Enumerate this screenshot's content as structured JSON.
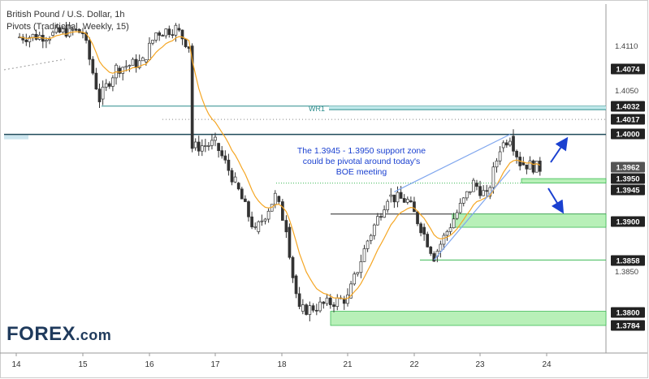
{
  "header": {
    "title": "British Pound / U.S. Dollar, 1h",
    "indicator": "Pivots (Traditional, Weekly, 15)"
  },
  "logo": {
    "brand": "FOREX",
    "suffix": ".com"
  },
  "colors": {
    "up": "#3a3a3a",
    "down": "#3a3a3a",
    "ema": "#f5a623",
    "zone_fill": "#b8f0b8",
    "zone_stroke": "#3cba54",
    "teal": "#2a8c8c",
    "annotation": "#1a40d0",
    "badge_dark": "#222222",
    "badge_grey": "#555555",
    "wedge": "#7fa6ee"
  },
  "chart_data": {
    "type": "candlestick",
    "title": "British Pound / U.S. Dollar, 1h",
    "x_tick_labels": [
      "14",
      "15",
      "16",
      "17",
      "18",
      "21",
      "22",
      "23",
      "24"
    ],
    "y_tick_labels": [
      "1.4110",
      "1.4050",
      "1.3850"
    ],
    "price_labels": [
      {
        "label": "1.4074",
        "style": "dark"
      },
      {
        "label": "1.4032",
        "style": "dark"
      },
      {
        "label": "1.4017",
        "style": "dark"
      },
      {
        "label": "1.4000",
        "style": "dark"
      },
      {
        "label": "1.3962",
        "style": "grey"
      },
      {
        "label": "1.3950",
        "style": "dark"
      },
      {
        "label": "1.3945",
        "style": "dark"
      },
      {
        "label": "1.3900",
        "style": "dark"
      },
      {
        "label": "1.3858",
        "style": "dark"
      },
      {
        "label": "1.3800",
        "style": "dark"
      },
      {
        "label": "1.3784",
        "style": "dark"
      }
    ],
    "annotation": "The 1.3945 - 1.3950 support zone could be pivotal around today's BOE meeting",
    "annotation_lines": [
      "The 1.3945 - 1.3950 support zone",
      "could be pivotal around today's",
      "BOE meeting"
    ],
    "pivot_label": "WR1",
    "levels": [
      {
        "name": "WR1 zone",
        "from": 1.4028,
        "to": 1.4034
      },
      {
        "name": "1.4000 line",
        "value": 1.4
      },
      {
        "name": "support zone",
        "from": 1.3945,
        "to": 1.395
      },
      {
        "name": "1.3900 zone",
        "from": 1.3895,
        "to": 1.391
      },
      {
        "name": "1.3858 line",
        "value": 1.3858
      },
      {
        "name": "1.3784-1.3800 zone",
        "from": 1.3784,
        "to": 1.38
      }
    ],
    "price_path": [
      {
        "day": 14.0,
        "price": 1.411
      },
      {
        "day": 14.5,
        "price": 1.4112
      },
      {
        "day": 14.8,
        "price": 1.4118
      },
      {
        "day": 15.0,
        "price": 1.4115
      },
      {
        "day": 15.25,
        "price": 1.404
      },
      {
        "day": 15.5,
        "price": 1.4075
      },
      {
        "day": 15.9,
        "price": 1.4082
      },
      {
        "day": 16.1,
        "price": 1.4115
      },
      {
        "day": 16.4,
        "price": 1.412
      },
      {
        "day": 16.6,
        "price": 1.41
      },
      {
        "day": 16.65,
        "price": 1.3985
      },
      {
        "day": 17.0,
        "price": 1.399
      },
      {
        "day": 17.3,
        "price": 1.3945
      },
      {
        "day": 17.6,
        "price": 1.389
      },
      {
        "day": 17.9,
        "price": 1.393
      },
      {
        "day": 18.2,
        "price": 1.3895
      },
      {
        "day": 18.5,
        "price": 1.384
      },
      {
        "day": 18.8,
        "price": 1.38
      },
      {
        "day": 21.0,
        "price": 1.3815
      },
      {
        "day": 21.3,
        "price": 1.388
      },
      {
        "day": 21.6,
        "price": 1.393
      },
      {
        "day": 21.9,
        "price": 1.3925
      },
      {
        "day": 22.1,
        "price": 1.3895
      },
      {
        "day": 22.3,
        "price": 1.3862
      },
      {
        "day": 22.6,
        "price": 1.3905
      },
      {
        "day": 22.9,
        "price": 1.3945
      },
      {
        "day": 23.1,
        "price": 1.393
      },
      {
        "day": 23.3,
        "price": 1.3985
      },
      {
        "day": 23.45,
        "price": 1.3998
      },
      {
        "day": 23.6,
        "price": 1.3968
      },
      {
        "day": 23.9,
        "price": 1.3962
      }
    ],
    "wedge": {
      "upper": [
        {
          "day": 21.7,
          "price": 1.3935
        },
        {
          "day": 23.45,
          "price": 1.4
        }
      ],
      "lower": [
        {
          "day": 22.3,
          "price": 1.3858
        },
        {
          "day": 23.45,
          "price": 1.396
        }
      ]
    }
  }
}
